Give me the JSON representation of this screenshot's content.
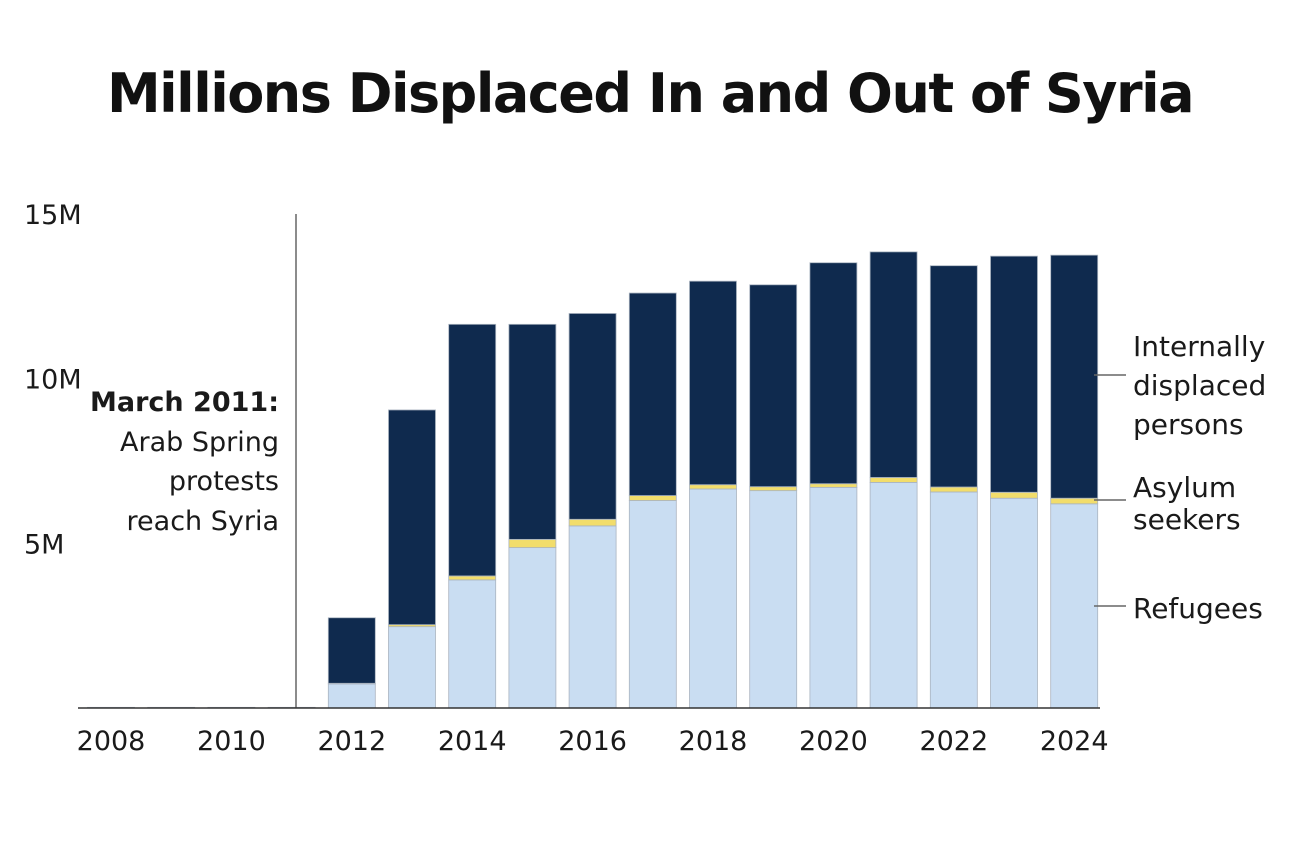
{
  "chart_data": {
    "type": "bar",
    "stacked": true,
    "title": "Millions Displaced In and Out of Syria",
    "xlabel": "",
    "ylabel": "",
    "ylim": [
      0,
      15
    ],
    "y_ticks": [
      5,
      10,
      15
    ],
    "y_tick_labels": [
      "5M",
      "10M",
      "15M"
    ],
    "x_tick_labels": [
      "2008",
      "2010",
      "2012",
      "2014",
      "2016",
      "2018",
      "2020",
      "2022",
      "2024"
    ],
    "categories": [
      "2008",
      "2009",
      "2010",
      "2011",
      "2012",
      "2013",
      "2014",
      "2015",
      "2016",
      "2017",
      "2018",
      "2019",
      "2020",
      "2021",
      "2022",
      "2023",
      "2024"
    ],
    "series": [
      {
        "name": "Refugees",
        "color": "#c9ddf2",
        "values": [
          0.02,
          0.02,
          0.02,
          0.02,
          0.73,
          2.47,
          3.89,
          4.87,
          5.53,
          6.3,
          6.65,
          6.6,
          6.7,
          6.85,
          6.56,
          6.37,
          6.2
        ]
      },
      {
        "name": "Asylum seekers",
        "color": "#f2dd6b",
        "values": [
          0.0,
          0.0,
          0.0,
          0.0,
          0.02,
          0.06,
          0.12,
          0.25,
          0.2,
          0.15,
          0.13,
          0.12,
          0.11,
          0.15,
          0.15,
          0.18,
          0.17
        ]
      },
      {
        "name": "Internally displaced persons",
        "color": "#0f2a4e",
        "values": [
          0.0,
          0.0,
          0.0,
          0.0,
          1.99,
          6.52,
          7.64,
          6.53,
          6.25,
          6.15,
          6.18,
          6.13,
          6.71,
          6.85,
          6.72,
          7.17,
          7.38
        ]
      }
    ],
    "legend": [
      "Internally displaced persons",
      "Asylum seekers",
      "Refugees"
    ],
    "annotation": {
      "at": "2011",
      "heading": "March 2011:",
      "lines": [
        "Arab Spring",
        "protests",
        "reach Syria"
      ]
    }
  },
  "legend_labels": {
    "idp": [
      "Internally",
      "displaced",
      "persons"
    ],
    "asylum": [
      "Asylum",
      "seekers"
    ],
    "refugees": [
      "Refugees"
    ]
  },
  "colors": {
    "refugees": "#c9ddf2",
    "asylum": "#f2dd6b",
    "idp": "#0f2a4e",
    "axis": "#555555"
  }
}
